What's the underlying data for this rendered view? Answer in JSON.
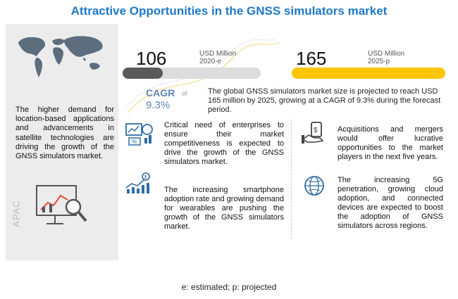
{
  "title": "Attractive Opportunities in the GNSS simulators market",
  "left_panel": {
    "text": "The higher demand for location-based applications and advancements in satellite technologies are driving the growth of the GNSS simulators market.",
    "region_label": "APAC",
    "icons": [
      "world-map-icon",
      "analytics-chart-icon"
    ]
  },
  "chart_data": {
    "type": "bar",
    "categories": [
      "2020-e",
      "2025-p"
    ],
    "values": [
      106,
      165
    ],
    "value_labels": [
      "106",
      "165"
    ],
    "unit_labels": [
      "USD Million\n2020-e",
      "USD Million\n2025-p"
    ],
    "unit": "USD Million",
    "ylim": [
      0,
      165
    ],
    "colors": [
      "#5a5a5a",
      "#ffc400"
    ],
    "track_color": "#dcdcdc",
    "title": "",
    "xlabel": "",
    "ylabel": ""
  },
  "cagr": {
    "label": "CAGR",
    "of_label": "of",
    "value": "9.3%"
  },
  "summary": "The global GNSS simulators market size is projected to reach USD 165 million by 2025, growing at a CAGR of 9.3% during the forecast period.",
  "features": [
    {
      "icon": "business-strategy-icon",
      "text": "Critical need of enterprises to ensure their market competitiveness is expected to drive the growth of the GNSS simulators market."
    },
    {
      "icon": "money-handshake-icon",
      "text": "Acquisitions and mergers would offer lucrative opportunities to the market players in the next five years."
    },
    {
      "icon": "growth-chart-icon",
      "text": "The increasing smartphone adoption rate and growing demand for wearables are pushing the growth of the GNSS simulators market."
    },
    {
      "icon": "global-network-icon",
      "text": "The increasing 5G penetration, growing cloud adoption, and connected devices are expected to boost the adoption of GNSS simulators across regions."
    }
  ],
  "footnote": "e: estimated; p: projected",
  "colors": {
    "title": "#1f78c8",
    "cagr": "#5b87b8",
    "panel_bg": "#ececec",
    "highlight": "#ffc400"
  }
}
